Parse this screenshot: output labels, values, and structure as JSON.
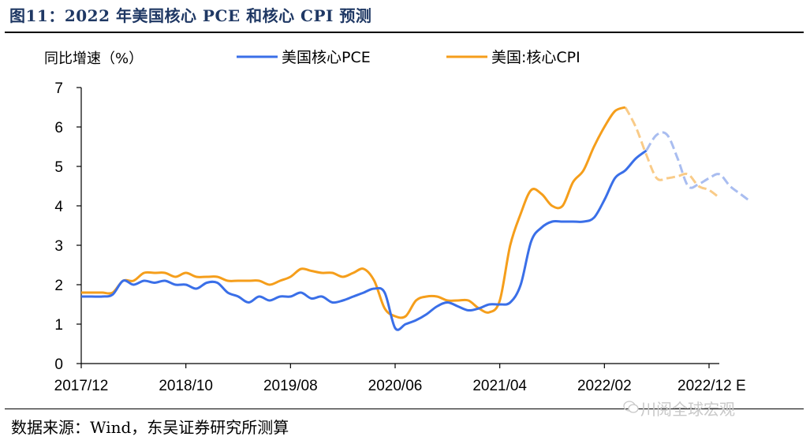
{
  "figure": {
    "title": "图11：2022 年美国核心 PCE 和核心 CPI 预测",
    "source": "数据来源：Wind，东吴证券研究所测算",
    "watermark": "川阅全球宏观"
  },
  "chart_data": {
    "type": "line",
    "ylabel": "同比增速（%）",
    "ylim": [
      0,
      7
    ],
    "yticks": [
      "0",
      "1",
      "2",
      "3",
      "4",
      "5",
      "6",
      "7"
    ],
    "xtick_labels": [
      "2017/12",
      "2018/10",
      "2019/08",
      "2020/06",
      "2021/04",
      "2022/02",
      "2022/12 E"
    ],
    "x_start": "2017/12",
    "x_end": "2022/12",
    "legend_position": "top",
    "series": [
      {
        "name": "美国核心PCE",
        "color": "#3a6fe8",
        "forecast_color": "#a9bdf0",
        "actual": [
          1.7,
          1.7,
          1.7,
          1.75,
          2.1,
          2.0,
          2.1,
          2.05,
          2.1,
          2.0,
          2.0,
          1.9,
          2.05,
          2.05,
          1.8,
          1.7,
          1.55,
          1.7,
          1.6,
          1.7,
          1.7,
          1.8,
          1.65,
          1.7,
          1.55,
          1.6,
          1.7,
          1.8,
          1.9,
          1.8,
          0.9,
          1.0,
          1.1,
          1.25,
          1.45,
          1.55,
          1.45,
          1.35,
          1.4,
          1.5,
          1.5,
          1.55,
          2.0,
          3.1,
          3.45,
          3.6,
          3.6,
          3.6,
          3.6,
          3.7,
          4.15,
          4.7,
          4.9,
          5.2,
          5.4
        ],
        "forecast": [
          5.4,
          5.8,
          5.8,
          5.2,
          4.5,
          4.55,
          4.7,
          4.8,
          4.5,
          4.3,
          4.1
        ]
      },
      {
        "name": "美国:核心CPI",
        "color": "#f59e1b",
        "forecast_color": "#f9cb88",
        "actual": [
          1.8,
          1.8,
          1.8,
          1.8,
          2.1,
          2.1,
          2.3,
          2.3,
          2.3,
          2.2,
          2.3,
          2.2,
          2.2,
          2.2,
          2.1,
          2.1,
          2.1,
          2.1,
          2.0,
          2.1,
          2.2,
          2.4,
          2.35,
          2.3,
          2.3,
          2.2,
          2.3,
          2.4,
          2.1,
          1.4,
          1.2,
          1.2,
          1.6,
          1.7,
          1.7,
          1.6,
          1.6,
          1.6,
          1.4,
          1.3,
          1.6,
          3.0,
          3.8,
          4.4,
          4.3,
          4.0,
          4.0,
          4.6,
          4.9,
          5.5,
          6.0,
          6.4,
          6.5
        ],
        "forecast": [
          6.5,
          6.0,
          5.3,
          4.7,
          4.7,
          4.75,
          4.8,
          4.5,
          4.4,
          4.2
        ]
      }
    ]
  }
}
